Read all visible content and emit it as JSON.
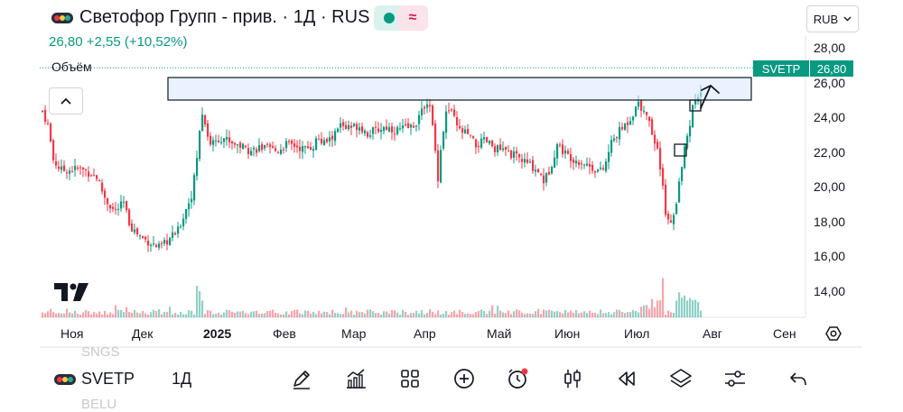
{
  "header": {
    "title": "Светофор Групп - прив. · 1Д · RUS",
    "price_line": "26,80  +2,55 (+10,52%)",
    "currency": "RUB"
  },
  "volume_label": "Объём",
  "price_axis": [
    "28,00",
    "26,00",
    "24,00",
    "22,00",
    "20,00",
    "18,00",
    "16,00",
    "14,00"
  ],
  "time_axis": [
    "Ноя",
    "Дек",
    "2025",
    "Фев",
    "Мар",
    "Апр",
    "Май",
    "Июн",
    "Июл",
    "Авг",
    "Сен"
  ],
  "last_price": {
    "ticker": "SVETP",
    "value": "26,80"
  },
  "bottom_bar": {
    "ghost_above": "SNGS",
    "ghost_below": "BELU",
    "ticker": "SVETP",
    "interval": "1Д"
  },
  "icons": {
    "toolbar": [
      "pen-icon",
      "indicators-icon",
      "grid-icon",
      "plus-circle-icon",
      "alert-clock-icon",
      "candles-icon",
      "replay-icon",
      "layers-icon",
      "settings-sliders-icon",
      "undo-icon"
    ]
  },
  "colors": {
    "up": "#089981",
    "down": "#f23645",
    "accent_bg": "#d9f2ee",
    "alt_bg": "#fbe3ea"
  },
  "chart_data": {
    "type": "candlestick",
    "symbol": "SVETP",
    "interval": "1D",
    "ylim": [
      12.6,
      28.8
    ],
    "last": 26.8,
    "change": 2.55,
    "change_pct": 10.52,
    "x_labels": [
      "Ноя",
      "Дек",
      "2025",
      "Фев",
      "Мар",
      "Апр",
      "Май",
      "Июн",
      "Июл",
      "Авг",
      "Сен"
    ],
    "close_path": [
      [
        0,
        24.3
      ],
      [
        6,
        23.5
      ],
      [
        12,
        21.5
      ],
      [
        20,
        20.9
      ],
      [
        30,
        20.9
      ],
      [
        40,
        21.0
      ],
      [
        50,
        20.8
      ],
      [
        60,
        20.5
      ],
      [
        70,
        19.2
      ],
      [
        80,
        18.5
      ],
      [
        90,
        19.0
      ],
      [
        95,
        18.0
      ],
      [
        100,
        17.5
      ],
      [
        110,
        17.0
      ],
      [
        120,
        16.7
      ],
      [
        130,
        16.4
      ],
      [
        140,
        16.9
      ],
      [
        150,
        17.4
      ],
      [
        160,
        18.8
      ],
      [
        165,
        19.5
      ],
      [
        170,
        21.0
      ],
      [
        173,
        23.0
      ],
      [
        176,
        24.2
      ],
      [
        180,
        23.7
      ],
      [
        185,
        22.4
      ],
      [
        190,
        22.6
      ],
      [
        200,
        22.8
      ],
      [
        210,
        22.5
      ],
      [
        220,
        22.3
      ],
      [
        230,
        22.0
      ],
      [
        240,
        22.2
      ],
      [
        250,
        22.1
      ],
      [
        260,
        22.0
      ],
      [
        270,
        22.4
      ],
      [
        280,
        22.3
      ],
      [
        290,
        22.1
      ],
      [
        300,
        22.3
      ],
      [
        305,
        22.8
      ],
      [
        310,
        22.4
      ],
      [
        320,
        22.7
      ],
      [
        330,
        23.5
      ],
      [
        340,
        23.3
      ],
      [
        350,
        23.5
      ],
      [
        360,
        23.0
      ],
      [
        370,
        23.2
      ],
      [
        380,
        23.4
      ],
      [
        390,
        23.2
      ],
      [
        400,
        23.3
      ],
      [
        410,
        23.4
      ],
      [
        420,
        24.2
      ],
      [
        425,
        25.0
      ],
      [
        430,
        24.3
      ],
      [
        435,
        22.0
      ],
      [
        438,
        20.5
      ],
      [
        442,
        22.6
      ],
      [
        448,
        24.5
      ],
      [
        455,
        24.0
      ],
      [
        460,
        23.2
      ],
      [
        470,
        23.0
      ],
      [
        480,
        22.3
      ],
      [
        490,
        22.6
      ],
      [
        500,
        22.2
      ],
      [
        510,
        22.0
      ],
      [
        520,
        21.8
      ],
      [
        530,
        21.5
      ],
      [
        540,
        21.2
      ],
      [
        550,
        20.8
      ],
      [
        555,
        20.3
      ],
      [
        560,
        20.7
      ],
      [
        565,
        21.5
      ],
      [
        570,
        22.4
      ],
      [
        580,
        21.8
      ],
      [
        590,
        21.5
      ],
      [
        600,
        21.3
      ],
      [
        610,
        21.0
      ],
      [
        620,
        20.8
      ],
      [
        625,
        21.5
      ],
      [
        630,
        22.5
      ],
      [
        640,
        23.2
      ],
      [
        650,
        23.8
      ],
      [
        655,
        24.3
      ],
      [
        660,
        24.8
      ],
      [
        665,
        24.4
      ],
      [
        670,
        24.0
      ],
      [
        675,
        22.8
      ],
      [
        680,
        22.3
      ],
      [
        683,
        21.2
      ],
      [
        686,
        20.3
      ],
      [
        690,
        18.3
      ],
      [
        694,
        18.2
      ],
      [
        698,
        17.9
      ],
      [
        702,
        19.0
      ],
      [
        706,
        20.5
      ],
      [
        710,
        22.0
      ],
      [
        716,
        23.0
      ],
      [
        720,
        24.6
      ],
      [
        724,
        25.0
      ],
      [
        728,
        24.7
      ],
      [
        731,
        26.8
      ]
    ]
  }
}
